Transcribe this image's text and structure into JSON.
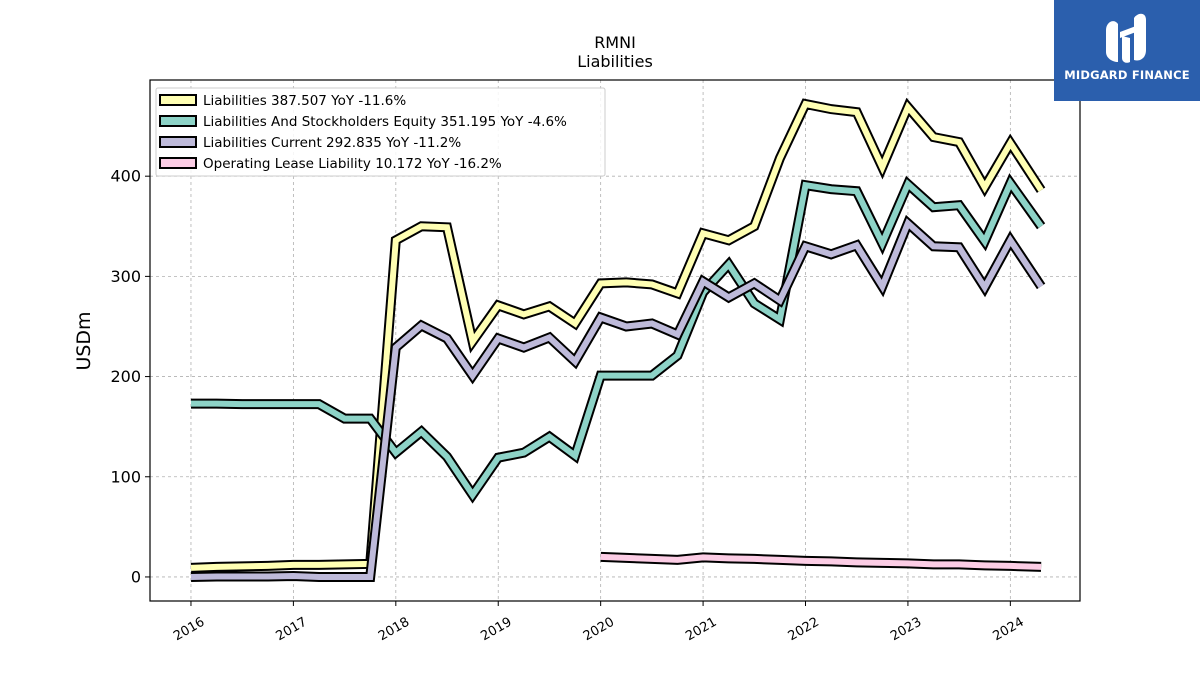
{
  "logo": {
    "text": "MIDGARD FINANCE",
    "icon": "midgard-logo-icon",
    "background": "#2b5fad"
  },
  "chart_data": {
    "type": "line",
    "title": "RMNI",
    "subtitle": "Liabilities",
    "ylabel": "USDm",
    "xlabel": "",
    "xlim": [
      2015.6,
      2024.68
    ],
    "ylim": [
      -24,
      496
    ],
    "yticks": [
      0,
      100,
      200,
      300,
      400
    ],
    "xticks": [
      "2016",
      "2017",
      "2018",
      "2019",
      "2020",
      "2021",
      "2022",
      "2023",
      "2024"
    ],
    "grid": true,
    "legend_position": "top-left",
    "series": [
      {
        "name": "Liabilities  387.507 YoY -11.6%",
        "color": "#ffffb3",
        "points": [
          [
            2016.0,
            9
          ],
          [
            2016.25,
            10
          ],
          [
            2016.5,
            10.5
          ],
          [
            2016.75,
            11
          ],
          [
            2017.0,
            12
          ],
          [
            2017.25,
            12
          ],
          [
            2017.5,
            12.5
          ],
          [
            2017.75,
            13
          ],
          [
            2018.0,
            336
          ],
          [
            2018.25,
            350
          ],
          [
            2018.5,
            349
          ],
          [
            2018.75,
            235
          ],
          [
            2019.0,
            271
          ],
          [
            2019.25,
            262
          ],
          [
            2019.5,
            270
          ],
          [
            2019.75,
            253
          ],
          [
            2020.0,
            293
          ],
          [
            2020.25,
            294
          ],
          [
            2020.5,
            292
          ],
          [
            2020.75,
            283
          ],
          [
            2021.0,
            343
          ],
          [
            2021.25,
            336
          ],
          [
            2021.5,
            350
          ],
          [
            2021.75,
            418
          ],
          [
            2022.0,
            472
          ],
          [
            2022.25,
            467
          ],
          [
            2022.5,
            464
          ],
          [
            2022.75,
            409
          ],
          [
            2023.0,
            469
          ],
          [
            2023.25,
            439
          ],
          [
            2023.5,
            434
          ],
          [
            2023.75,
            389
          ],
          [
            2024.0,
            433
          ],
          [
            2024.3,
            386
          ]
        ]
      },
      {
        "name": "Liabilities And Stockholders Equity  351.195 YoY -4.6%",
        "color": "#8dd3c7",
        "points": [
          [
            2016.0,
            173
          ],
          [
            2016.25,
            173
          ],
          [
            2016.5,
            172.5
          ],
          [
            2016.75,
            172.5
          ],
          [
            2017.0,
            172.5
          ],
          [
            2017.25,
            172.5
          ],
          [
            2017.5,
            158
          ],
          [
            2017.75,
            158
          ],
          [
            2018.0,
            124
          ],
          [
            2018.25,
            145
          ],
          [
            2018.5,
            120
          ],
          [
            2018.75,
            82
          ],
          [
            2019.0,
            119
          ],
          [
            2019.25,
            124
          ],
          [
            2019.5,
            140
          ],
          [
            2019.75,
            121
          ],
          [
            2020.0,
            201
          ],
          [
            2020.25,
            201
          ],
          [
            2020.5,
            201
          ],
          [
            2020.75,
            221
          ],
          [
            2021.0,
            284
          ],
          [
            2021.25,
            312
          ],
          [
            2021.5,
            273
          ],
          [
            2021.75,
            257
          ],
          [
            2022.0,
            391
          ],
          [
            2022.25,
            387
          ],
          [
            2022.5,
            385
          ],
          [
            2022.75,
            333
          ],
          [
            2023.0,
            392
          ],
          [
            2023.25,
            369
          ],
          [
            2023.5,
            371
          ],
          [
            2023.75,
            335
          ],
          [
            2024.0,
            393
          ],
          [
            2024.3,
            350
          ]
        ]
      },
      {
        "name": "Liabilities Current  292.835 YoY -11.2%",
        "color": "#bebada",
        "points": [
          [
            2016.0,
            0
          ],
          [
            2016.25,
            0.5
          ],
          [
            2016.5,
            0.5
          ],
          [
            2016.75,
            0.5
          ],
          [
            2017.0,
            1
          ],
          [
            2017.25,
            0
          ],
          [
            2017.5,
            0
          ],
          [
            2017.75,
            0
          ],
          [
            2018.0,
            229
          ],
          [
            2018.25,
            251
          ],
          [
            2018.5,
            238
          ],
          [
            2018.75,
            201
          ],
          [
            2019.0,
            238
          ],
          [
            2019.25,
            229
          ],
          [
            2019.5,
            239
          ],
          [
            2019.75,
            215
          ],
          [
            2020.0,
            259
          ],
          [
            2020.25,
            250
          ],
          [
            2020.5,
            253
          ],
          [
            2020.75,
            242
          ],
          [
            2021.0,
            295
          ],
          [
            2021.25,
            279
          ],
          [
            2021.5,
            293
          ],
          [
            2021.75,
            276
          ],
          [
            2022.0,
            330
          ],
          [
            2022.25,
            322
          ],
          [
            2022.5,
            331
          ],
          [
            2022.75,
            290
          ],
          [
            2023.0,
            353
          ],
          [
            2023.25,
            330
          ],
          [
            2023.5,
            329
          ],
          [
            2023.75,
            289
          ],
          [
            2024.0,
            336
          ],
          [
            2024.3,
            290
          ]
        ]
      },
      {
        "name": "Operating Lease Liability  10.172 YoY -16.2%",
        "color": "#fccde5",
        "points": [
          [
            2020.0,
            20
          ],
          [
            2020.25,
            19
          ],
          [
            2020.5,
            18
          ],
          [
            2020.75,
            17
          ],
          [
            2021.0,
            19.5
          ],
          [
            2021.25,
            18.5
          ],
          [
            2021.5,
            18
          ],
          [
            2021.75,
            17
          ],
          [
            2022.0,
            16
          ],
          [
            2022.25,
            15.5
          ],
          [
            2022.5,
            14.5
          ],
          [
            2022.75,
            14
          ],
          [
            2023.0,
            13.5
          ],
          [
            2023.25,
            12.5
          ],
          [
            2023.5,
            12.5
          ],
          [
            2023.75,
            11.5
          ],
          [
            2024.0,
            11
          ],
          [
            2024.3,
            10
          ]
        ]
      }
    ]
  }
}
